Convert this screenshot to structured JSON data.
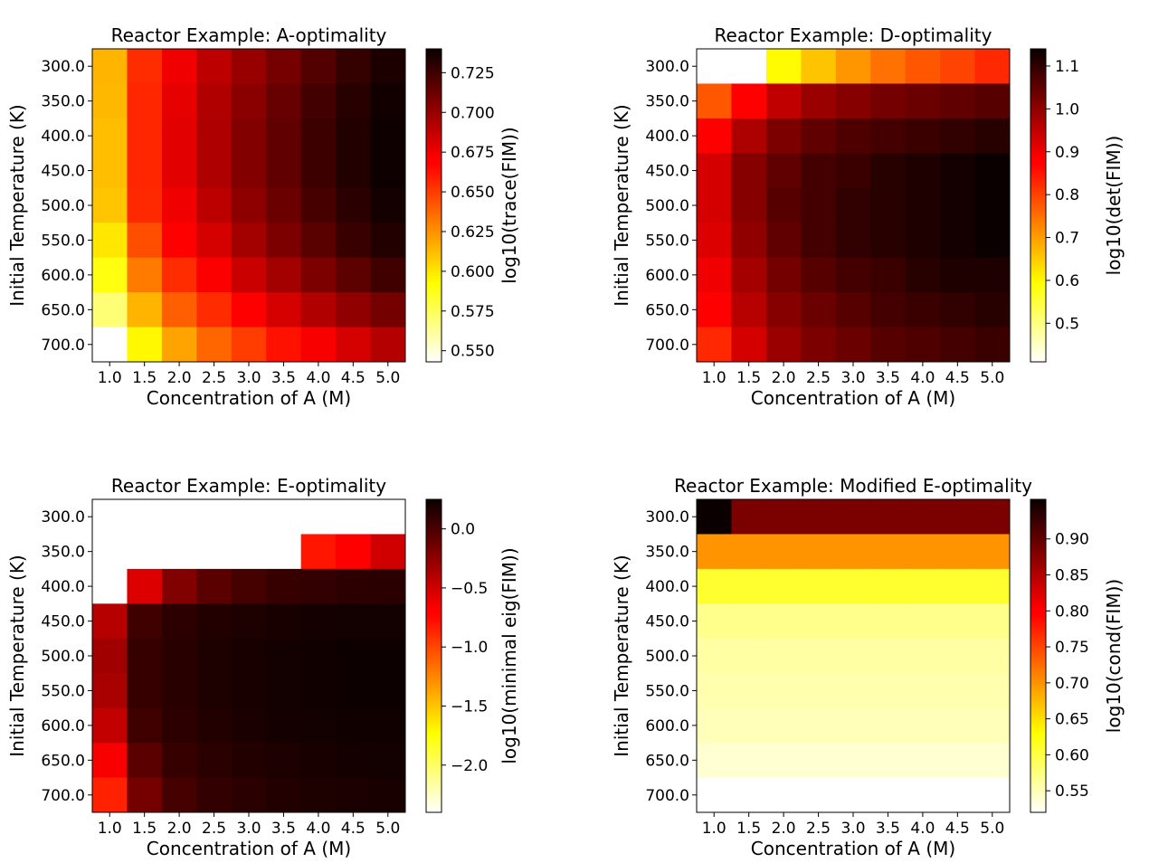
{
  "chart_data": [
    {
      "type": "heatmap",
      "title": "Reactor Example: A-optimality",
      "xlabel": "Concentration of A (M)",
      "ylabel": "Initial Temperature (K)",
      "x_ticks": [
        "1.0",
        "1.5",
        "2.0",
        "2.5",
        "3.0",
        "3.5",
        "4.0",
        "4.5",
        "5.0"
      ],
      "y_ticks": [
        "300.0",
        "350.0",
        "400.0",
        "450.0",
        "500.0",
        "550.0",
        "600.0",
        "650.0",
        "700.0"
      ],
      "colorbar_label": "log10(trace(FIM))",
      "colorbar_ticks": [
        "0.550",
        "0.575",
        "0.600",
        "0.625",
        "0.650",
        "0.675",
        "0.700",
        "0.725"
      ],
      "colorbar_tick_values": [
        0.55,
        0.575,
        0.6,
        0.625,
        0.65,
        0.675,
        0.7,
        0.725
      ],
      "vmin": 0.543,
      "vmax": 0.74,
      "values": [
        [
          0.615,
          0.655,
          0.675,
          0.69,
          0.7,
          0.71,
          0.72,
          0.728,
          0.735
        ],
        [
          0.614,
          0.657,
          0.678,
          0.693,
          0.704,
          0.714,
          0.724,
          0.732,
          0.738
        ],
        [
          0.612,
          0.657,
          0.679,
          0.694,
          0.706,
          0.716,
          0.726,
          0.733,
          0.739
        ],
        [
          0.612,
          0.657,
          0.679,
          0.694,
          0.706,
          0.716,
          0.726,
          0.733,
          0.739
        ],
        [
          0.61,
          0.656,
          0.675,
          0.69,
          0.703,
          0.713,
          0.723,
          0.731,
          0.737
        ],
        [
          0.6,
          0.645,
          0.668,
          0.683,
          0.697,
          0.708,
          0.718,
          0.727,
          0.733
        ],
        [
          0.59,
          0.632,
          0.655,
          0.672,
          0.686,
          0.697,
          0.708,
          0.717,
          0.725
        ],
        [
          0.57,
          0.615,
          0.64,
          0.655,
          0.67,
          0.683,
          0.693,
          0.702,
          0.71
        ],
        [
          0.543,
          0.595,
          0.62,
          0.638,
          0.65,
          0.663,
          0.673,
          0.683,
          0.692
        ]
      ]
    },
    {
      "type": "heatmap",
      "title": "Reactor Example: D-optimality",
      "xlabel": "Concentration of A (M)",
      "ylabel": "Initial Temperature (K)",
      "x_ticks": [
        "1.0",
        "1.5",
        "2.0",
        "2.5",
        "3.0",
        "3.5",
        "4.0",
        "4.5",
        "5.0"
      ],
      "y_ticks": [
        "300.0",
        "350.0",
        "400.0",
        "450.0",
        "500.0",
        "550.0",
        "600.0",
        "650.0",
        "700.0"
      ],
      "colorbar_label": "log10(det(FIM))",
      "colorbar_ticks": [
        "0.5",
        "0.6",
        "0.7",
        "0.8",
        "0.9",
        "1.0",
        "1.1"
      ],
      "colorbar_tick_values": [
        0.5,
        0.6,
        0.7,
        0.8,
        0.9,
        1.0,
        1.1
      ],
      "vmin": 0.41,
      "vmax": 1.14,
      "values": [
        [
          0.41,
          0.41,
          0.6,
          0.66,
          0.71,
          0.75,
          0.78,
          0.8,
          0.83
        ],
        [
          0.78,
          0.88,
          0.95,
          0.99,
          1.01,
          1.03,
          1.04,
          1.05,
          1.06
        ],
        [
          0.88,
          0.97,
          1.02,
          1.05,
          1.07,
          1.08,
          1.09,
          1.1,
          1.11
        ],
        [
          0.93,
          1.01,
          1.05,
          1.08,
          1.09,
          1.11,
          1.12,
          1.13,
          1.14
        ],
        [
          0.93,
          1.01,
          1.06,
          1.08,
          1.1,
          1.11,
          1.12,
          1.13,
          1.14
        ],
        [
          0.92,
          1.0,
          1.05,
          1.08,
          1.1,
          1.11,
          1.12,
          1.13,
          1.14
        ],
        [
          0.9,
          0.98,
          1.03,
          1.06,
          1.08,
          1.09,
          1.11,
          1.12,
          1.12
        ],
        [
          0.88,
          0.96,
          1.01,
          1.04,
          1.06,
          1.08,
          1.09,
          1.1,
          1.11
        ],
        [
          0.83,
          0.93,
          0.99,
          1.02,
          1.04,
          1.06,
          1.07,
          1.08,
          1.09
        ]
      ]
    },
    {
      "type": "heatmap",
      "title": "Reactor Example: E-optimality",
      "xlabel": "Concentration of A (M)",
      "ylabel": "Initial Temperature (K)",
      "x_ticks": [
        "1.0",
        "1.5",
        "2.0",
        "2.5",
        "3.0",
        "3.5",
        "4.0",
        "4.5",
        "5.0"
      ],
      "y_ticks": [
        "300.0",
        "350.0",
        "400.0",
        "450.0",
        "500.0",
        "550.0",
        "600.0",
        "650.0",
        "700.0"
      ],
      "colorbar_label": "log10(minimal eig(FIM))",
      "colorbar_ticks": [
        "0.0",
        "−0.5",
        "−1.0",
        "−1.5",
        "−2.0"
      ],
      "colorbar_tick_values": [
        0.0,
        -0.5,
        -1.0,
        -1.5,
        -2.0
      ],
      "vmin": -2.4,
      "vmax": 0.25,
      "values": [
        [
          -2.4,
          -2.4,
          -2.4,
          -2.4,
          -2.4,
          -2.4,
          -2.4,
          -2.4,
          -2.4
        ],
        [
          -2.4,
          -2.4,
          -2.4,
          -2.4,
          -2.4,
          -2.4,
          -0.8,
          -0.7,
          -0.5
        ],
        [
          -2.4,
          -0.55,
          -0.2,
          -0.05,
          0.03,
          0.08,
          0.1,
          0.12,
          0.13
        ],
        [
          -0.4,
          0.05,
          0.12,
          0.16,
          0.18,
          0.2,
          0.21,
          0.22,
          0.22
        ],
        [
          -0.32,
          0.08,
          0.14,
          0.18,
          0.2,
          0.22,
          0.23,
          0.24,
          0.24
        ],
        [
          -0.35,
          0.08,
          0.14,
          0.18,
          0.2,
          0.22,
          0.23,
          0.24,
          0.24
        ],
        [
          -0.45,
          0.05,
          0.12,
          0.16,
          0.19,
          0.21,
          0.22,
          0.23,
          0.23
        ],
        [
          -0.65,
          -0.05,
          0.08,
          0.13,
          0.16,
          0.18,
          0.2,
          0.21,
          0.22
        ],
        [
          -0.85,
          -0.15,
          0.03,
          0.1,
          0.13,
          0.16,
          0.18,
          0.19,
          0.2
        ]
      ]
    },
    {
      "type": "heatmap",
      "title": "Reactor Example: Modified E-optimality",
      "xlabel": "Concentration of A (M)",
      "ylabel": "Initial Temperature (K)",
      "x_ticks": [
        "1.0",
        "1.5",
        "2.0",
        "2.5",
        "3.0",
        "3.5",
        "4.0",
        "4.5",
        "5.0"
      ],
      "y_ticks": [
        "300.0",
        "350.0",
        "400.0",
        "450.0",
        "500.0",
        "550.0",
        "600.0",
        "650.0",
        "700.0"
      ],
      "colorbar_label": "log10(cond(FIM))",
      "colorbar_ticks": [
        "0.55",
        "0.60",
        "0.65",
        "0.70",
        "0.75",
        "0.80",
        "0.85",
        "0.90"
      ],
      "colorbar_tick_values": [
        0.55,
        0.6,
        0.65,
        0.7,
        0.75,
        0.8,
        0.85,
        0.9
      ],
      "vmin": 0.52,
      "vmax": 0.955,
      "values": [
        [
          0.955,
          0.885,
          0.885,
          0.885,
          0.885,
          0.885,
          0.885,
          0.885,
          0.885
        ],
        [
          0.7,
          0.7,
          0.7,
          0.7,
          0.7,
          0.7,
          0.7,
          0.7,
          0.7
        ],
        [
          0.61,
          0.61,
          0.61,
          0.61,
          0.61,
          0.61,
          0.61,
          0.61,
          0.61
        ],
        [
          0.57,
          0.57,
          0.57,
          0.57,
          0.57,
          0.57,
          0.57,
          0.57,
          0.57
        ],
        [
          0.56,
          0.56,
          0.56,
          0.56,
          0.56,
          0.56,
          0.56,
          0.56,
          0.56
        ],
        [
          0.555,
          0.555,
          0.555,
          0.555,
          0.555,
          0.555,
          0.555,
          0.555,
          0.555
        ],
        [
          0.55,
          0.55,
          0.55,
          0.55,
          0.55,
          0.55,
          0.55,
          0.55,
          0.55
        ],
        [
          0.54,
          0.54,
          0.54,
          0.54,
          0.54,
          0.54,
          0.54,
          0.54,
          0.54
        ],
        [
          0.52,
          0.52,
          0.52,
          0.52,
          0.52,
          0.52,
          0.52,
          0.52,
          0.52
        ]
      ]
    }
  ]
}
